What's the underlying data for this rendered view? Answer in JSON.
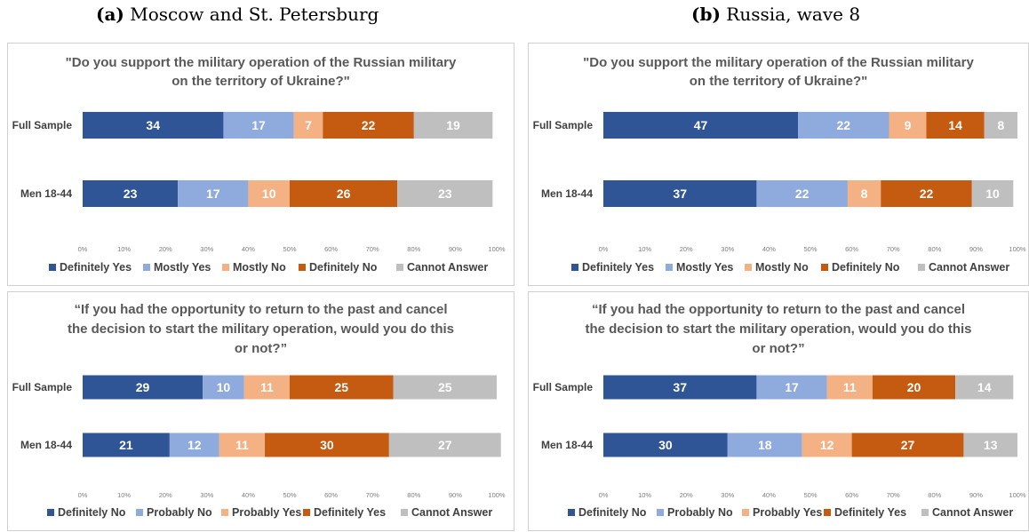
{
  "captions": {
    "a": {
      "tag": "(a)",
      "text": "Moscow and St. Petersburg"
    },
    "b": {
      "tag": "(b)",
      "text": "Russia, wave 8"
    }
  },
  "chart_data": [
    {
      "type": "bar",
      "stacked": true,
      "orientation": "horizontal",
      "panel": "a",
      "title_lines": [
        "\"Do you support the military operation of the Russian military",
        "on the territory of Ukraine?\""
      ],
      "categories": [
        "Full Sample",
        "Men 18-44"
      ],
      "series": [
        {
          "name": "Definitely Yes",
          "values": [
            34,
            23
          ],
          "color": "#2f5597",
          "text_color": "#ffffff"
        },
        {
          "name": "Mostly Yes",
          "values": [
            17,
            17
          ],
          "color": "#8faadc",
          "text_color": "#ffffff"
        },
        {
          "name": "Mostly No",
          "values": [
            7,
            10
          ],
          "color": "#f4b183",
          "text_color": "#ffffff"
        },
        {
          "name": "Definitely No",
          "values": [
            22,
            26
          ],
          "color": "#c55a11",
          "text_color": "#ffffff"
        },
        {
          "name": "Cannot Answer",
          "values": [
            19,
            23
          ],
          "color": "#bfbfbf",
          "text_color": "#ffffff"
        }
      ],
      "xticks": [
        "0%",
        "10%",
        "20%",
        "30%",
        "40%",
        "50%",
        "60%",
        "70%",
        "80%",
        "90%",
        "100%"
      ],
      "xlim": [
        0,
        100
      ],
      "legend_position": "bottom"
    },
    {
      "type": "bar",
      "stacked": true,
      "orientation": "horizontal",
      "panel": "b",
      "title_lines": [
        "\"Do you support the military operation of the Russian military",
        "on the territory of Ukraine?\""
      ],
      "categories": [
        "Full Sample",
        "Men 18-44"
      ],
      "series": [
        {
          "name": "Definitely Yes",
          "values": [
            47,
            37
          ],
          "color": "#2f5597",
          "text_color": "#ffffff"
        },
        {
          "name": "Mostly Yes",
          "values": [
            22,
            22
          ],
          "color": "#8faadc",
          "text_color": "#ffffff"
        },
        {
          "name": "Mostly No",
          "values": [
            9,
            8
          ],
          "color": "#f4b183",
          "text_color": "#ffffff"
        },
        {
          "name": "Definitely No",
          "values": [
            14,
            22
          ],
          "color": "#c55a11",
          "text_color": "#ffffff"
        },
        {
          "name": "Cannot Answer",
          "values": [
            8,
            10
          ],
          "color": "#bfbfbf",
          "text_color": "#ffffff"
        }
      ],
      "xticks": [
        "0%",
        "10%",
        "20%",
        "30%",
        "40%",
        "50%",
        "60%",
        "70%",
        "80%",
        "90%",
        "100%"
      ],
      "xlim": [
        0,
        100
      ],
      "legend_position": "bottom"
    },
    {
      "type": "bar",
      "stacked": true,
      "orientation": "horizontal",
      "panel": "a",
      "title_lines": [
        "“If you had the opportunity to return to the past and cancel",
        "the decision to start the military operation, would you do this",
        "or not?”"
      ],
      "categories": [
        "Full Sample",
        "Men 18-44"
      ],
      "series": [
        {
          "name": "Definitely No",
          "values": [
            29,
            21
          ],
          "color": "#2f5597",
          "text_color": "#ffffff"
        },
        {
          "name": "Probably No",
          "values": [
            10,
            12
          ],
          "color": "#8faadc",
          "text_color": "#ffffff"
        },
        {
          "name": "Probably Yes",
          "values": [
            11,
            11
          ],
          "color": "#f4b183",
          "text_color": "#ffffff"
        },
        {
          "name": "Definitely Yes",
          "values": [
            25,
            30
          ],
          "color": "#c55a11",
          "text_color": "#ffffff"
        },
        {
          "name": "Cannot Answer",
          "values": [
            25,
            27
          ],
          "color": "#bfbfbf",
          "text_color": "#ffffff"
        }
      ],
      "xticks": [
        "0%",
        "10%",
        "20%",
        "30%",
        "40%",
        "50%",
        "60%",
        "70%",
        "80%",
        "90%",
        "100%"
      ],
      "xlim": [
        0,
        100
      ],
      "legend_position": "bottom"
    },
    {
      "type": "bar",
      "stacked": true,
      "orientation": "horizontal",
      "panel": "b",
      "title_lines": [
        "“If you had the opportunity to return to the past and cancel",
        "the decision to start the military operation, would you do this",
        "or not?”"
      ],
      "categories": [
        "Full Sample",
        "Men 18-44"
      ],
      "series": [
        {
          "name": "Definitely No",
          "values": [
            37,
            30
          ],
          "color": "#2f5597",
          "text_color": "#ffffff"
        },
        {
          "name": "Probably No",
          "values": [
            17,
            18
          ],
          "color": "#8faadc",
          "text_color": "#ffffff"
        },
        {
          "name": "Probably Yes",
          "values": [
            11,
            12
          ],
          "color": "#f4b183",
          "text_color": "#ffffff"
        },
        {
          "name": "Definitely Yes",
          "values": [
            20,
            27
          ],
          "color": "#c55a11",
          "text_color": "#ffffff"
        },
        {
          "name": "Cannot Answer",
          "values": [
            14,
            13
          ],
          "color": "#bfbfbf",
          "text_color": "#ffffff"
        }
      ],
      "xticks": [
        "0%",
        "10%",
        "20%",
        "30%",
        "40%",
        "50%",
        "60%",
        "70%",
        "80%",
        "90%",
        "100%"
      ],
      "xlim": [
        0,
        100
      ],
      "legend_position": "bottom"
    }
  ]
}
